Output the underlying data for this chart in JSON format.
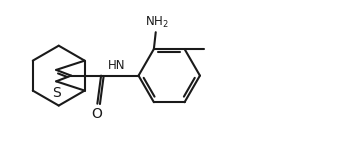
{
  "bg_color": "#ffffff",
  "line_color": "#1a1a1a",
  "line_width": 1.5,
  "font_size": 8.5,
  "figsize": [
    3.57,
    1.55
  ],
  "dpi": 100,
  "xlim": [
    0,
    9.5
  ],
  "ylim": [
    0,
    4.0
  ]
}
